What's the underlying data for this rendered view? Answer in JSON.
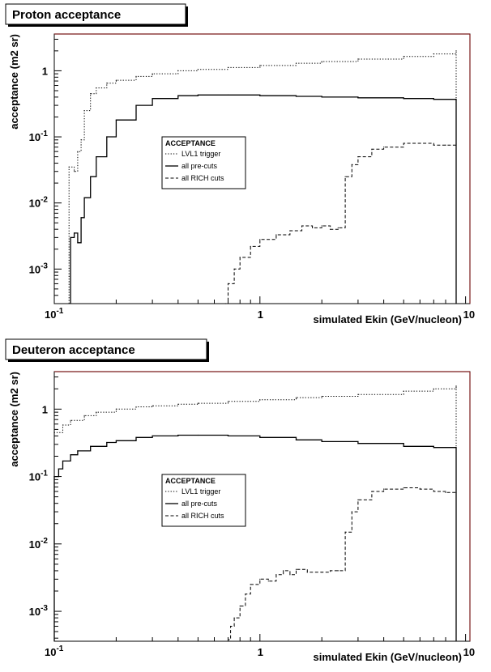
{
  "chart_data": [
    {
      "type": "line",
      "title": "Proton acceptance",
      "xlabel": "simulated Ekin (GeV/nucleon)",
      "ylabel": "acceptance (m2 sr)",
      "x_scale": "log",
      "y_scale": "log",
      "xlim": [
        0.1,
        10.5
      ],
      "ylim": [
        0.0003,
        3.6
      ],
      "x_ticks": [
        {
          "value": 0.1,
          "base": "10",
          "exp": "-1"
        },
        {
          "value": 1,
          "base": "1",
          "exp": ""
        },
        {
          "value": 10,
          "base": "10",
          "exp": ""
        }
      ],
      "y_ticks": [
        {
          "value": 0.001,
          "base": "10",
          "exp": "-3"
        },
        {
          "value": 0.01,
          "base": "10",
          "exp": "-2"
        },
        {
          "value": 0.1,
          "base": "10",
          "exp": "-1"
        },
        {
          "value": 1,
          "base": "1",
          "exp": ""
        }
      ],
      "legend": {
        "title": "ACCEPTANCE",
        "placement": "center",
        "entries": [
          "LVL1 trigger",
          "all pre-cuts",
          "all RICH cuts"
        ]
      },
      "series": [
        {
          "name": "LVL1 trigger",
          "style": "dotted",
          "x": [
            0.118,
            0.125,
            0.13,
            0.135,
            0.14,
            0.15,
            0.16,
            0.18,
            0.2,
            0.25,
            0.3,
            0.4,
            0.5,
            0.7,
            1,
            1.5,
            2,
            3,
            5,
            7,
            9
          ],
          "y": [
            0.035,
            0.03,
            0.06,
            0.09,
            0.25,
            0.45,
            0.55,
            0.65,
            0.72,
            0.82,
            0.9,
            1.0,
            1.05,
            1.12,
            1.2,
            1.3,
            1.38,
            1.5,
            1.65,
            1.8,
            2.0
          ]
        },
        {
          "name": "all pre-cuts",
          "style": "solid",
          "x": [
            0.12,
            0.125,
            0.13,
            0.135,
            0.14,
            0.15,
            0.16,
            0.18,
            0.2,
            0.25,
            0.3,
            0.4,
            0.5,
            0.7,
            1,
            1.5,
            2,
            3,
            5,
            7,
            9
          ],
          "y": [
            0.003,
            0.0035,
            0.0025,
            0.006,
            0.012,
            0.025,
            0.05,
            0.1,
            0.18,
            0.3,
            0.38,
            0.42,
            0.43,
            0.43,
            0.42,
            0.41,
            0.4,
            0.39,
            0.38,
            0.37,
            0.36
          ]
        },
        {
          "name": "all RICH cuts",
          "style": "dashed",
          "x": [
            0.68,
            0.7,
            0.75,
            0.8,
            0.9,
            1,
            1.2,
            1.4,
            1.6,
            1.8,
            2,
            2.2,
            2.4,
            2.6,
            2.8,
            3,
            3.5,
            4,
            5,
            6,
            7,
            8,
            9
          ],
          "y": [
            0.0003,
            0.0006,
            0.001,
            0.0015,
            0.0022,
            0.0028,
            0.0033,
            0.0038,
            0.0045,
            0.0042,
            0.0045,
            0.004,
            0.0042,
            0.025,
            0.038,
            0.05,
            0.065,
            0.07,
            0.08,
            0.08,
            0.075,
            0.075,
            0.078
          ]
        }
      ]
    },
    {
      "type": "line",
      "title": "Deuteron acceptance",
      "xlabel": "simulated Ekin (GeV/nucleon)",
      "ylabel": "acceptance (m2 sr)",
      "x_scale": "log",
      "y_scale": "log",
      "xlim": [
        0.1,
        10.5
      ],
      "ylim": [
        0.00036,
        3.6
      ],
      "x_ticks": [
        {
          "value": 0.1,
          "base": "10",
          "exp": "-1"
        },
        {
          "value": 1,
          "base": "1",
          "exp": ""
        },
        {
          "value": 10,
          "base": "10",
          "exp": ""
        }
      ],
      "y_ticks": [
        {
          "value": 0.001,
          "base": "10",
          "exp": "-3"
        },
        {
          "value": 0.01,
          "base": "10",
          "exp": "-2"
        },
        {
          "value": 0.1,
          "base": "10",
          "exp": "-1"
        },
        {
          "value": 1,
          "base": "1",
          "exp": ""
        }
      ],
      "legend": {
        "title": "ACCEPTANCE",
        "placement": "center",
        "entries": [
          "LVL1 trigger",
          "all pre-cuts",
          "all RICH cuts"
        ]
      },
      "series": [
        {
          "name": "LVL1 trigger",
          "style": "dotted",
          "x": [
            0.1,
            0.11,
            0.12,
            0.14,
            0.16,
            0.2,
            0.25,
            0.3,
            0.4,
            0.5,
            0.7,
            1,
            1.5,
            2,
            3,
            5,
            7,
            9
          ],
          "y": [
            0.45,
            0.58,
            0.68,
            0.8,
            0.9,
            1.0,
            1.08,
            1.12,
            1.18,
            1.22,
            1.3,
            1.38,
            1.48,
            1.55,
            1.65,
            1.85,
            2.0,
            2.2
          ]
        },
        {
          "name": "all pre-cuts",
          "style": "solid",
          "x": [
            0.1,
            0.105,
            0.11,
            0.12,
            0.13,
            0.15,
            0.18,
            0.2,
            0.25,
            0.3,
            0.4,
            0.5,
            0.7,
            1,
            1.5,
            2,
            3,
            5,
            7,
            9
          ],
          "y": [
            0.1,
            0.13,
            0.17,
            0.21,
            0.24,
            0.28,
            0.32,
            0.34,
            0.38,
            0.4,
            0.41,
            0.41,
            0.4,
            0.38,
            0.35,
            0.33,
            0.31,
            0.28,
            0.27,
            0.26
          ]
        },
        {
          "name": "all RICH cuts",
          "style": "dashed",
          "x": [
            0.7,
            0.72,
            0.75,
            0.8,
            0.85,
            0.9,
            1,
            1.1,
            1.2,
            1.3,
            1.4,
            1.5,
            1.7,
            2,
            2.2,
            2.4,
            2.6,
            2.8,
            3,
            3.5,
            4,
            5,
            6,
            7,
            8,
            9
          ],
          "y": [
            0.00038,
            0.0006,
            0.0008,
            0.0012,
            0.0018,
            0.0025,
            0.003,
            0.0028,
            0.0035,
            0.004,
            0.0035,
            0.0042,
            0.0038,
            0.0038,
            0.004,
            0.004,
            0.015,
            0.03,
            0.045,
            0.06,
            0.065,
            0.068,
            0.065,
            0.06,
            0.058,
            0.058
          ]
        }
      ]
    }
  ]
}
